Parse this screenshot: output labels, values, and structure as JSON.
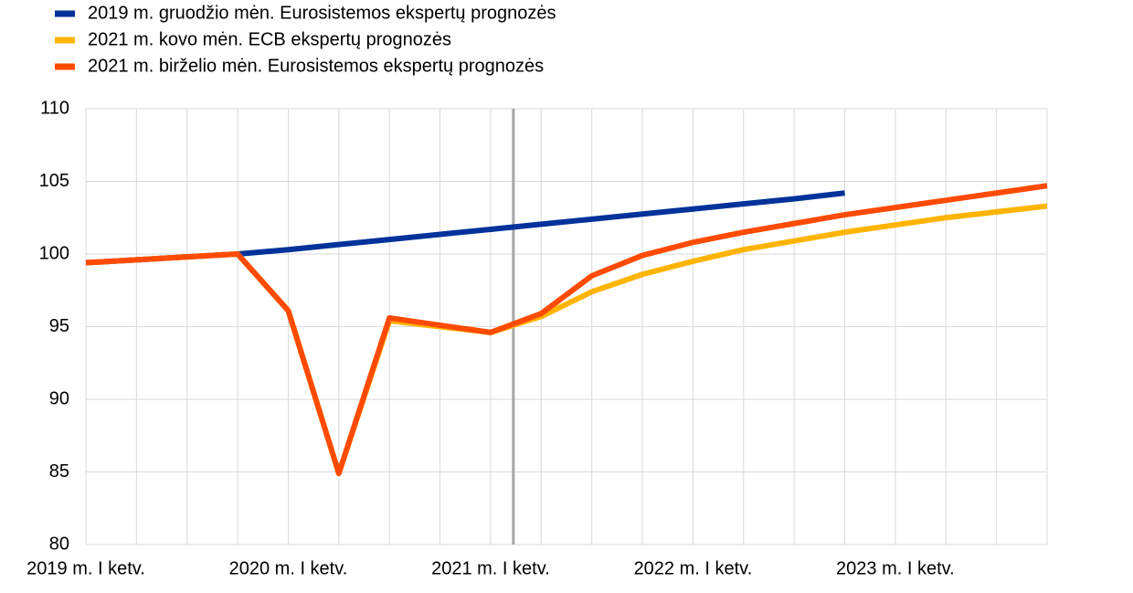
{
  "chart_data": {
    "type": "line",
    "categories": [
      "2019 m. I ketv.",
      null,
      null,
      null,
      "2020 m. I ketv.",
      null,
      null,
      null,
      "2021 m. I ketv.",
      null,
      null,
      null,
      "2022 m. I ketv.",
      null,
      null,
      null,
      "2023 m. I ketv.",
      null,
      null,
      null
    ],
    "series": [
      {
        "name": "2019 m. gruodžio mėn. Eurosistemos ekspertų prognozės",
        "color": "#003299",
        "values": [
          99.4,
          99.6,
          99.8,
          100.0,
          100.3,
          100.65,
          101.0,
          101.35,
          101.7,
          102.05,
          102.4,
          102.75,
          103.1,
          103.45,
          103.8,
          104.2,
          null,
          null,
          null,
          null
        ]
      },
      {
        "name": "2021 m. kovo mėn. ECB ekspertų prognozės",
        "color": "#ffb400",
        "values": [
          99.4,
          99.6,
          99.8,
          100.0,
          96.1,
          84.9,
          95.4,
          95.0,
          94.6,
          95.7,
          97.4,
          98.6,
          99.5,
          100.3,
          100.9,
          101.5,
          102.0,
          102.5,
          102.9,
          103.3
        ]
      },
      {
        "name": "2021 m. birželio mėn. Eurosistemos ekspertų prognozės",
        "color": "#ff4b00",
        "values": [
          99.4,
          99.6,
          99.8,
          100.0,
          96.1,
          84.9,
          95.6,
          95.1,
          94.6,
          95.9,
          98.5,
          99.9,
          100.8,
          101.5,
          102.1,
          102.7,
          103.2,
          103.7,
          104.2,
          104.7
        ]
      }
    ],
    "ylim": [
      80,
      110
    ],
    "yticks": [
      80,
      85,
      90,
      95,
      100,
      105,
      110
    ],
    "grid": true,
    "cutoff": 8.45,
    "cutoff_color": "#a6a6a6",
    "legend": "top-left"
  }
}
